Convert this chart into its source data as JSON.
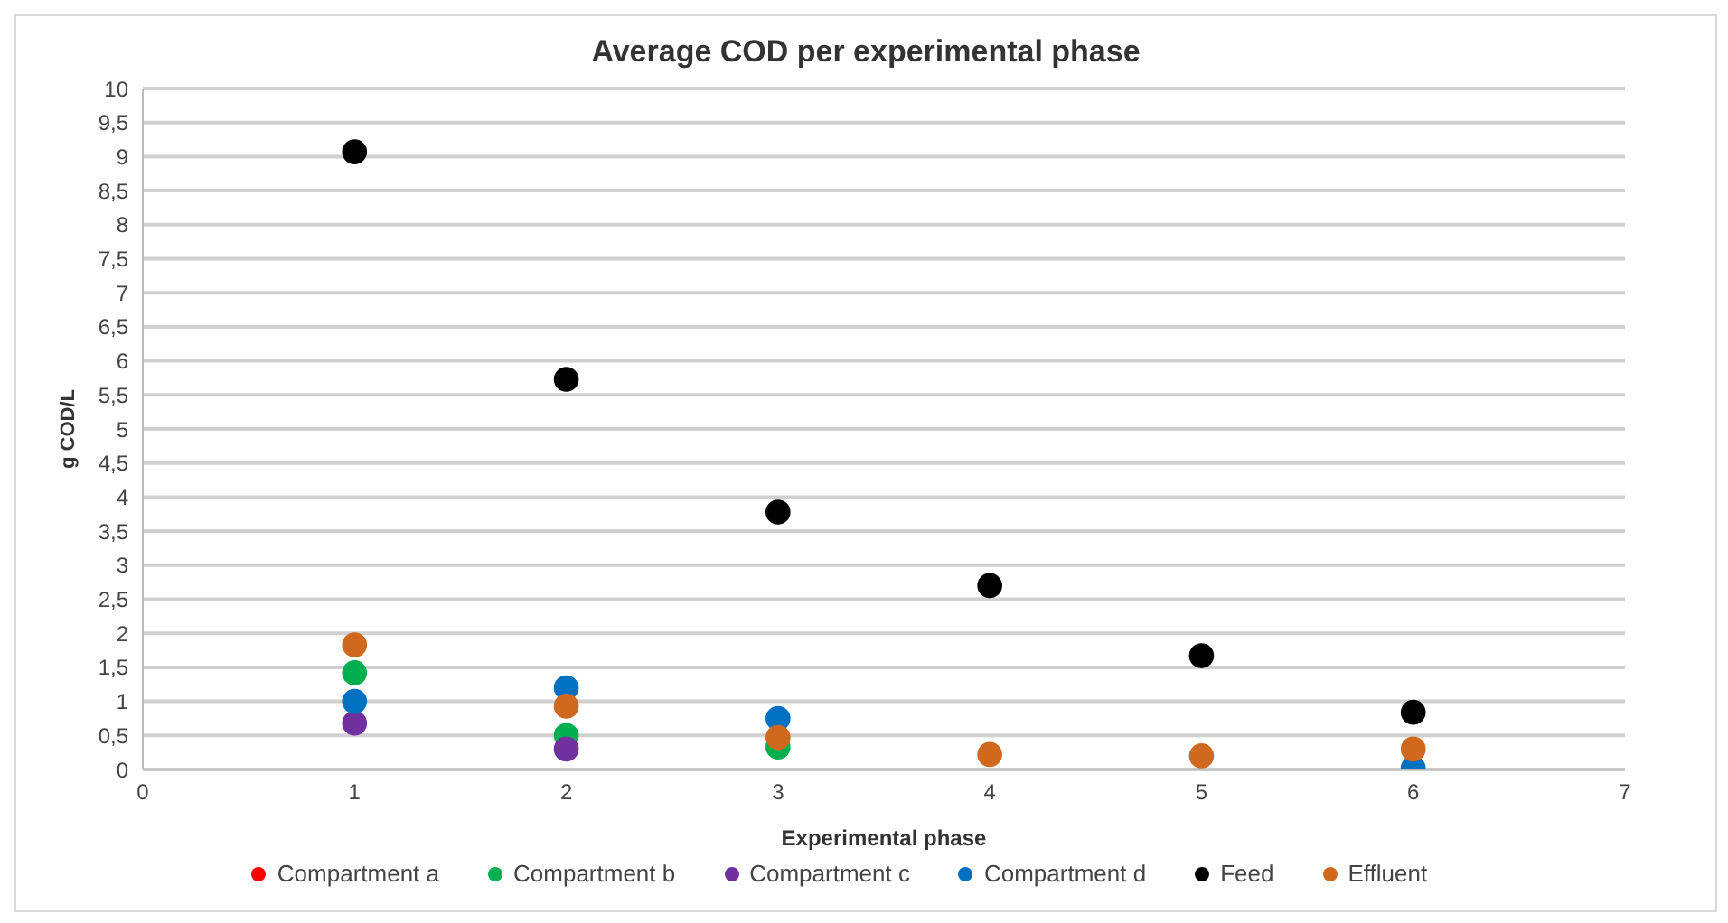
{
  "chart_data": {
    "type": "scatter",
    "title": "Average COD per experimental phase",
    "xlabel": "Experimental phase",
    "ylabel": "g COD/L",
    "x": [
      1,
      2,
      3,
      4,
      5,
      6
    ],
    "series": [
      {
        "name": "Compartment a",
        "color": "#ff0000",
        "values": [
          null,
          null,
          null,
          null,
          null,
          null
        ]
      },
      {
        "name": "Compartment b",
        "color": "#00b050",
        "values": [
          1.42,
          0.5,
          0.33,
          null,
          null,
          null
        ]
      },
      {
        "name": "Compartment c",
        "color": "#7030a0",
        "values": [
          0.68,
          0.3,
          null,
          null,
          null,
          null
        ]
      },
      {
        "name": "Compartment d",
        "color": "#0070c0",
        "values": [
          1.0,
          1.2,
          0.75,
          null,
          null,
          0.02
        ]
      },
      {
        "name": "Feed",
        "color": "#000000",
        "values": [
          9.07,
          5.73,
          3.78,
          2.7,
          1.67,
          0.84
        ]
      },
      {
        "name": "Effluent",
        "color": "#d0691e",
        "values": [
          1.83,
          0.93,
          0.47,
          0.22,
          0.2,
          0.3
        ]
      }
    ],
    "xlim": [
      0,
      7
    ],
    "xticks": [
      0,
      1,
      2,
      3,
      4,
      5,
      6,
      7
    ],
    "ylim": [
      0,
      10
    ],
    "yticks": [
      0,
      {
        "value": 0.5,
        "label": "0,5"
      },
      1,
      {
        "value": 1.5,
        "label": "1,5"
      },
      2,
      {
        "value": 2.5,
        "label": "2,5"
      },
      3,
      {
        "value": 3.5,
        "label": "3,5"
      },
      4,
      {
        "value": 4.5,
        "label": "4,5"
      },
      5,
      {
        "value": 5.5,
        "label": "5,5"
      },
      6,
      {
        "value": 6.5,
        "label": "6,5"
      },
      7,
      {
        "value": 7.5,
        "label": "7,5"
      },
      8,
      {
        "value": 8.5,
        "label": "8,5"
      },
      9,
      {
        "value": 9.5,
        "label": "9,5"
      },
      10
    ],
    "grid": "y",
    "legend": "bottom",
    "marker": "circle"
  }
}
